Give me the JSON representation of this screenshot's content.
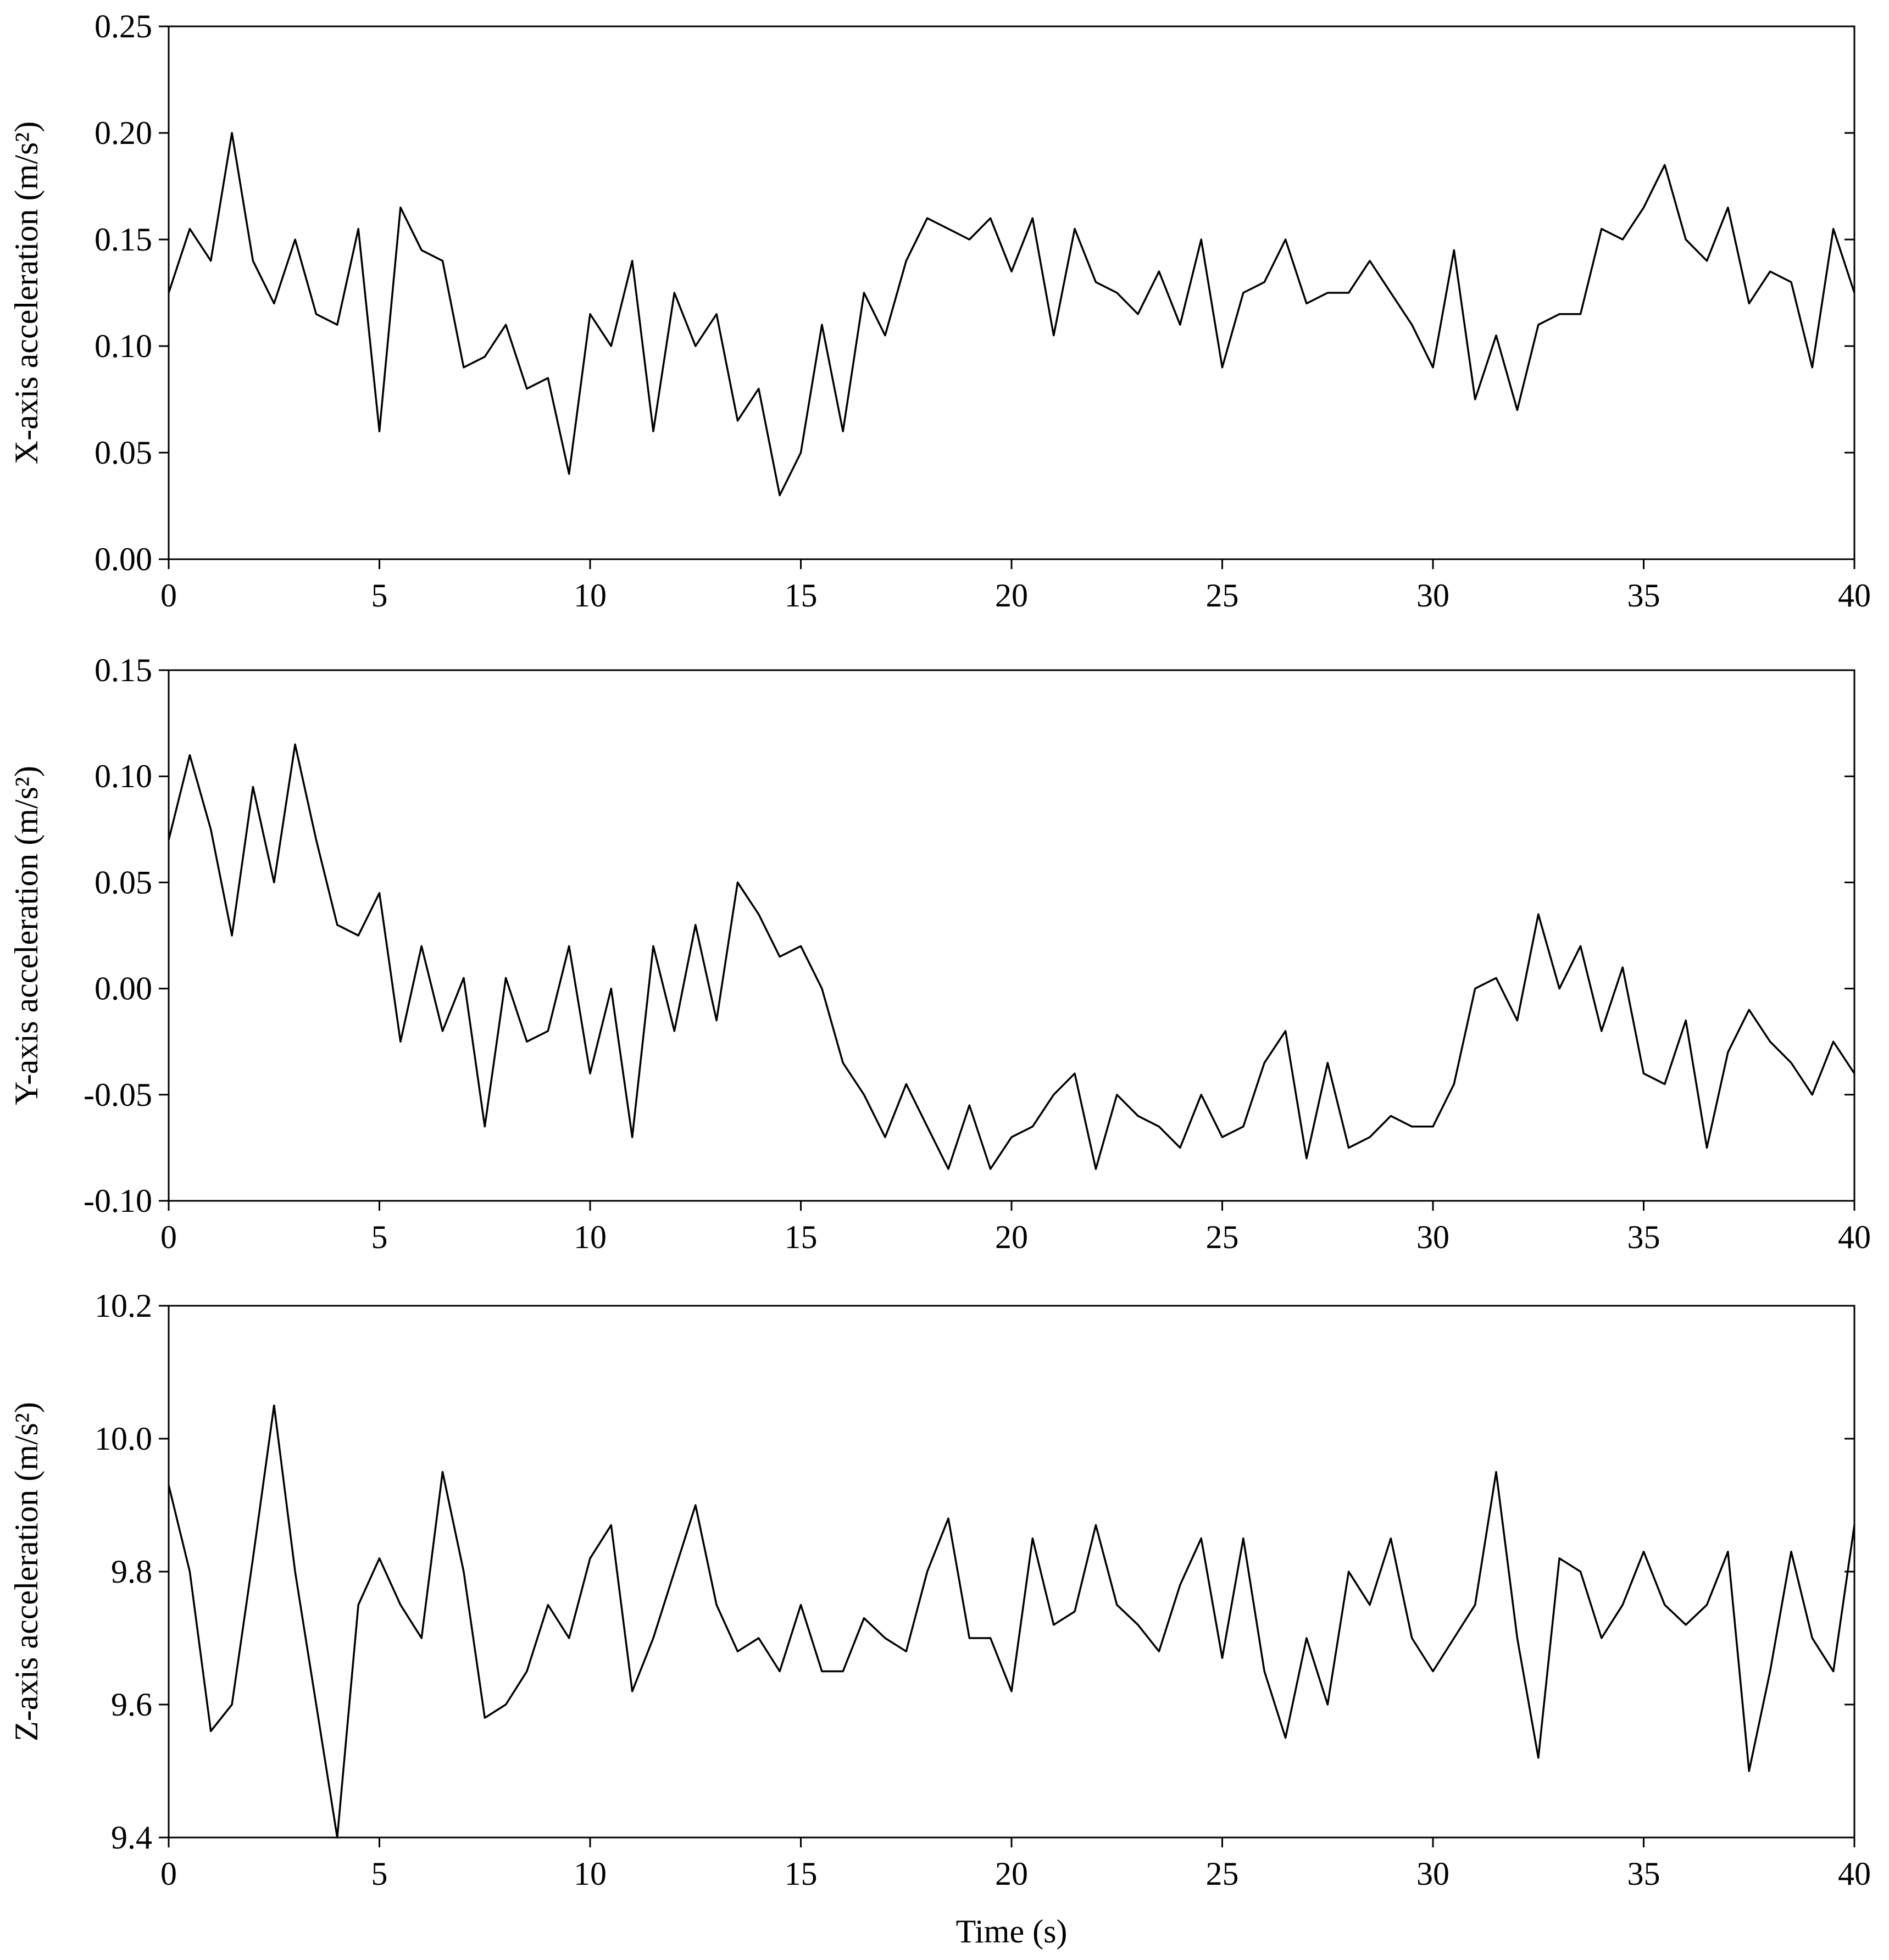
{
  "chart_data": [
    {
      "type": "line",
      "ylabel": "X-axis acceleration (m/s²)",
      "x": [
        0,
        0.5,
        1,
        1.5,
        2,
        2.5,
        3,
        3.5,
        4,
        4.5,
        5,
        5.5,
        6,
        6.5,
        7,
        7.5,
        8,
        8.5,
        9,
        9.5,
        10,
        10.5,
        11,
        11.5,
        12,
        12.5,
        13,
        13.5,
        14,
        14.5,
        15,
        15.5,
        16,
        16.5,
        17,
        17.5,
        18,
        18.5,
        19,
        19.5,
        20,
        20.5,
        21,
        21.5,
        22,
        22.5,
        23,
        23.5,
        24,
        24.5,
        25,
        25.5,
        26,
        26.5,
        27,
        27.5,
        28,
        28.5,
        29,
        29.5,
        30,
        30.5,
        31,
        31.5,
        32,
        32.5,
        33,
        33.5,
        34,
        34.5,
        35,
        35.5,
        36,
        36.5,
        37,
        37.5,
        38,
        38.5,
        39,
        39.5,
        40
      ],
      "values": [
        0.125,
        0.155,
        0.14,
        0.2,
        0.14,
        0.12,
        0.15,
        0.115,
        0.11,
        0.155,
        0.06,
        0.165,
        0.145,
        0.14,
        0.09,
        0.095,
        0.11,
        0.08,
        0.085,
        0.04,
        0.115,
        0.1,
        0.14,
        0.06,
        0.125,
        0.1,
        0.115,
        0.065,
        0.08,
        0.03,
        0.05,
        0.11,
        0.06,
        0.125,
        0.105,
        0.14,
        0.16,
        0.155,
        0.15,
        0.16,
        0.135,
        0.16,
        0.105,
        0.155,
        0.13,
        0.125,
        0.115,
        0.135,
        0.11,
        0.15,
        0.09,
        0.125,
        0.13,
        0.15,
        0.12,
        0.125,
        0.125,
        0.14,
        0.125,
        0.11,
        0.09,
        0.145,
        0.075,
        0.105,
        0.07,
        0.11,
        0.115,
        0.115,
        0.155,
        0.15,
        0.165,
        0.185,
        0.15,
        0.14,
        0.165,
        0.12,
        0.135,
        0.13,
        0.09,
        0.155,
        0.125
      ],
      "color": "#000000",
      "xlim": [
        0,
        40
      ],
      "xticks": [
        0,
        5,
        10,
        15,
        20,
        25,
        30,
        35,
        40
      ],
      "ylim": [
        0,
        0.25
      ],
      "yticks": [
        {
          "value": 0,
          "label": "0.00"
        },
        0.05,
        {
          "value": 0.1,
          "label": "0.10"
        },
        0.15,
        {
          "value": 0.2,
          "label": "0.20"
        },
        0.25
      ]
    },
    {
      "type": "line",
      "ylabel": "Y-axis acceleration (m/s²)",
      "x": [
        0,
        0.5,
        1,
        1.5,
        2,
        2.5,
        3,
        3.5,
        4,
        4.5,
        5,
        5.5,
        6,
        6.5,
        7,
        7.5,
        8,
        8.5,
        9,
        9.5,
        10,
        10.5,
        11,
        11.5,
        12,
        12.5,
        13,
        13.5,
        14,
        14.5,
        15,
        15.5,
        16,
        16.5,
        17,
        17.5,
        18,
        18.5,
        19,
        19.5,
        20,
        20.5,
        21,
        21.5,
        22,
        22.5,
        23,
        23.5,
        24,
        24.5,
        25,
        25.5,
        26,
        26.5,
        27,
        27.5,
        28,
        28.5,
        29,
        29.5,
        30,
        30.5,
        31,
        31.5,
        32,
        32.5,
        33,
        33.5,
        34,
        34.5,
        35,
        35.5,
        36,
        36.5,
        37,
        37.5,
        38,
        38.5,
        39,
        39.5,
        40
      ],
      "values": [
        0.07,
        0.11,
        0.075,
        0.025,
        0.095,
        0.05,
        0.115,
        0.07,
        0.03,
        0.025,
        0.045,
        -0.025,
        0.02,
        -0.02,
        0.005,
        -0.065,
        0.005,
        -0.025,
        -0.02,
        0.02,
        -0.04,
        0,
        -0.07,
        0.02,
        -0.02,
        0.03,
        -0.015,
        0.05,
        0.035,
        0.015,
        0.02,
        0,
        -0.035,
        -0.05,
        -0.07,
        -0.045,
        -0.065,
        -0.085,
        -0.055,
        -0.085,
        -0.07,
        -0.065,
        -0.05,
        -0.04,
        -0.085,
        -0.05,
        -0.06,
        -0.065,
        -0.075,
        -0.05,
        -0.07,
        -0.065,
        -0.035,
        -0.02,
        -0.08,
        -0.035,
        -0.075,
        -0.07,
        -0.06,
        -0.065,
        -0.065,
        -0.045,
        0,
        0.005,
        -0.015,
        0.035,
        0,
        0.02,
        -0.02,
        0.01,
        -0.04,
        -0.045,
        -0.015,
        -0.075,
        -0.03,
        -0.01,
        -0.025,
        -0.035,
        -0.05,
        -0.025,
        -0.04
      ],
      "color": "#000000",
      "xlim": [
        0,
        40
      ],
      "xticks": [
        0,
        5,
        10,
        15,
        20,
        25,
        30,
        35,
        40
      ],
      "ylim": [
        -0.1,
        0.15
      ],
      "yticks": [
        {
          "value": -0.1,
          "label": "-0.10"
        },
        -0.05,
        {
          "value": 0,
          "label": "0.00"
        },
        0.05,
        {
          "value": 0.1,
          "label": "0.10"
        },
        0.15
      ]
    },
    {
      "type": "line",
      "ylabel": "Z-axis acceleration (m/s²)",
      "xlabel": "Time (s)",
      "x": [
        0,
        0.5,
        1,
        1.5,
        2,
        2.5,
        3,
        3.5,
        4,
        4.5,
        5,
        5.5,
        6,
        6.5,
        7,
        7.5,
        8,
        8.5,
        9,
        9.5,
        10,
        10.5,
        11,
        11.5,
        12,
        12.5,
        13,
        13.5,
        14,
        14.5,
        15,
        15.5,
        16,
        16.5,
        17,
        17.5,
        18,
        18.5,
        19,
        19.5,
        20,
        20.5,
        21,
        21.5,
        22,
        22.5,
        23,
        23.5,
        24,
        24.5,
        25,
        25.5,
        26,
        26.5,
        27,
        27.5,
        28,
        28.5,
        29,
        29.5,
        30,
        30.5,
        31,
        31.5,
        32,
        32.5,
        33,
        33.5,
        34,
        34.5,
        35,
        35.5,
        36,
        36.5,
        37,
        37.5,
        38,
        38.5,
        39,
        39.5,
        40
      ],
      "values": [
        9.93,
        9.8,
        9.56,
        9.6,
        9.82,
        10.05,
        9.8,
        9.6,
        9.4,
        9.75,
        9.82,
        9.75,
        9.7,
        9.95,
        9.8,
        9.58,
        9.6,
        9.65,
        9.75,
        9.7,
        9.82,
        9.87,
        9.62,
        9.7,
        9.8,
        9.9,
        9.75,
        9.68,
        9.7,
        9.65,
        9.75,
        9.65,
        9.65,
        9.73,
        9.7,
        9.68,
        9.8,
        9.88,
        9.7,
        9.7,
        9.62,
        9.85,
        9.72,
        9.74,
        9.87,
        9.75,
        9.72,
        9.68,
        9.78,
        9.85,
        9.67,
        9.85,
        9.65,
        9.55,
        9.7,
        9.6,
        9.8,
        9.75,
        9.85,
        9.7,
        9.65,
        9.7,
        9.75,
        9.95,
        9.7,
        9.52,
        9.82,
        9.8,
        9.7,
        9.75,
        9.83,
        9.75,
        9.72,
        9.75,
        9.83,
        9.5,
        9.65,
        9.83,
        9.7,
        9.65,
        9.87
      ],
      "color": "#000000",
      "xlim": [
        0,
        40
      ],
      "xticks": [
        0,
        5,
        10,
        15,
        20,
        25,
        30,
        35,
        40
      ],
      "ylim": [
        9.4,
        10.2
      ],
      "yticks": [
        9.4,
        9.6,
        9.8,
        {
          "value": 10,
          "label": "10.0"
        },
        10.2
      ]
    }
  ]
}
